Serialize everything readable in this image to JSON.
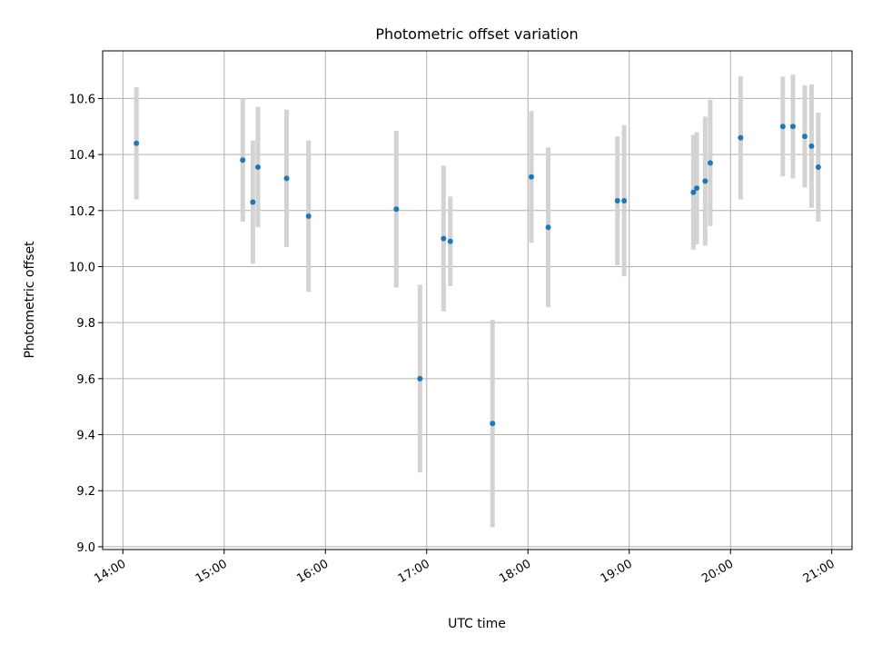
{
  "chart_data": {
    "type": "scatter",
    "title": "Photometric offset variation",
    "xlabel": "UTC time",
    "ylabel": "Photometric offset",
    "x_unit": "UTC time (HH:MM)",
    "xlim": [
      "13:48",
      "21:12"
    ],
    "ylim": [
      8.99,
      10.77
    ],
    "grid": true,
    "x_ticks": [
      "14:00",
      "15:00",
      "16:00",
      "17:00",
      "18:00",
      "19:00",
      "20:00",
      "21:00"
    ],
    "y_ticks": [
      9.0,
      9.2,
      9.4,
      9.6,
      9.8,
      10.0,
      10.2,
      10.4,
      10.6
    ],
    "y_tick_labels": [
      "9.0",
      "9.2",
      "9.4",
      "9.6",
      "9.8",
      "10.0",
      "10.2",
      "10.4",
      "10.6"
    ],
    "marker_color": "#1f77b4",
    "errorbar_color": "#d3d3d3",
    "points": [
      {
        "time": "14:08",
        "y": 10.44,
        "yerr": 0.2
      },
      {
        "time": "15:11",
        "y": 10.38,
        "yerr": 0.22
      },
      {
        "time": "15:17",
        "y": 10.23,
        "yerr": 0.22
      },
      {
        "time": "15:20",
        "y": 10.355,
        "yerr": 0.215
      },
      {
        "time": "15:37",
        "y": 10.315,
        "yerr": 0.245
      },
      {
        "time": "15:50",
        "y": 10.18,
        "yerr": 0.27
      },
      {
        "time": "16:42",
        "y": 10.205,
        "yerr": 0.28
      },
      {
        "time": "16:56",
        "y": 9.6,
        "yerr": 0.335
      },
      {
        "time": "17:10",
        "y": 10.1,
        "yerr": 0.26
      },
      {
        "time": "17:14",
        "y": 10.09,
        "yerr": 0.16
      },
      {
        "time": "17:39",
        "y": 9.44,
        "yerr": 0.37
      },
      {
        "time": "18:02",
        "y": 10.32,
        "yerr": 0.235
      },
      {
        "time": "18:12",
        "y": 10.14,
        "yerr": 0.285
      },
      {
        "time": "18:53",
        "y": 10.235,
        "yerr": 0.23
      },
      {
        "time": "18:57",
        "y": 10.235,
        "yerr": 0.27
      },
      {
        "time": "19:38",
        "y": 10.265,
        "yerr": 0.205
      },
      {
        "time": "19:40",
        "y": 10.28,
        "yerr": 0.2
      },
      {
        "time": "19:45",
        "y": 10.305,
        "yerr": 0.23
      },
      {
        "time": "19:48",
        "y": 10.37,
        "yerr": 0.225
      },
      {
        "time": "20:06",
        "y": 10.46,
        "yerr": 0.22
      },
      {
        "time": "20:31",
        "y": 10.5,
        "yerr": 0.178
      },
      {
        "time": "20:37",
        "y": 10.5,
        "yerr": 0.185
      },
      {
        "time": "20:44",
        "y": 10.465,
        "yerr": 0.182
      },
      {
        "time": "20:48",
        "y": 10.43,
        "yerr": 0.22
      },
      {
        "time": "20:52",
        "y": 10.355,
        "yerr": 0.195
      }
    ]
  }
}
